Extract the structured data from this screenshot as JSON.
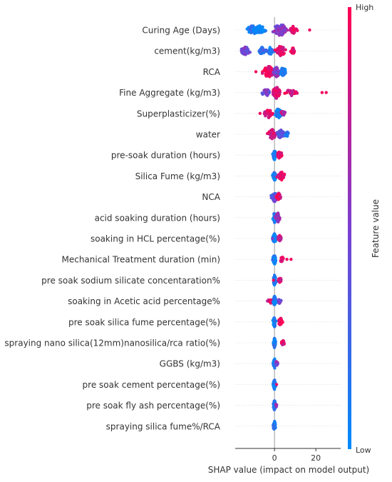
{
  "chart_data": {
    "type": "scatter",
    "subtype": "shap-beeswarm",
    "title": "",
    "xlabel": "SHAP value (impact on model output)",
    "xlim": [
      -19,
      32
    ],
    "xticks": [
      0,
      20
    ],
    "colorbar": {
      "label": "Feature value",
      "high_label": "High",
      "low_label": "Low",
      "high_color": "#ff0052",
      "low_color": "#008bfb"
    },
    "features": [
      {
        "name": "Curing Age (Days)",
        "clusters": [
          [
            -11,
            2.5,
            0.1,
            0.8
          ],
          [
            -7,
            2.5,
            0.05,
            0.7
          ],
          [
            3,
            3.5,
            0.55,
            1.0
          ],
          [
            9,
            1.5,
            0.9,
            0.5
          ]
        ],
        "outliers": [
          [
            17,
            0.95
          ]
        ]
      },
      {
        "name": "cement(kg/m3)",
        "clusters": [
          [
            -14,
            2.0,
            0.45,
            0.7
          ],
          [
            -6,
            1.5,
            0.2,
            0.5
          ],
          [
            -2,
            1.5,
            0.15,
            0.5
          ],
          [
            3,
            2.0,
            0.85,
            0.9
          ],
          [
            9,
            1.0,
            0.92,
            0.4
          ]
        ],
        "outliers": [
          [
            -16,
            0.5
          ]
        ]
      },
      {
        "name": "RCA",
        "clusters": [
          [
            -3,
            2.5,
            0.95,
            1.0
          ],
          [
            1,
            1.5,
            0.5,
            0.9
          ],
          [
            4,
            1.5,
            0.12,
            0.6
          ]
        ],
        "outliers": [
          [
            -9,
            0.95
          ]
        ]
      },
      {
        "name": "Fine Aggregate (kg/m3)",
        "clusters": [
          [
            -4,
            2.0,
            0.5,
            0.5
          ],
          [
            1,
            1.8,
            0.85,
            1.0
          ],
          [
            8,
            2.5,
            0.85,
            0.4
          ]
        ],
        "outliers": [
          [
            23,
            0.95
          ],
          [
            25,
            0.95
          ]
        ]
      },
      {
        "name": "Superplasticizer(%)",
        "clusters": [
          [
            -3,
            1.8,
            0.85,
            0.7
          ],
          [
            2,
            1.2,
            0.1,
            0.9
          ],
          [
            4,
            1.0,
            0.75,
            0.3
          ]
        ],
        "outliers": [
          [
            -7,
            0.95
          ]
        ]
      },
      {
        "name": "water",
        "clusters": [
          [
            -1,
            1.8,
            0.85,
            0.8
          ],
          [
            3,
            1.6,
            0.4,
            0.7
          ],
          [
            6,
            0.8,
            0.1,
            0.3
          ]
        ],
        "outliers": []
      },
      {
        "name": "pre-soak duration (hours)",
        "clusters": [
          [
            0,
            0.8,
            0.1,
            0.8
          ],
          [
            2.5,
            1.2,
            0.9,
            0.5
          ]
        ],
        "outliers": []
      },
      {
        "name": "Silica Fume (kg/m3)",
        "clusters": [
          [
            0,
            0.7,
            0.08,
            0.8
          ],
          [
            3.5,
            1.6,
            0.92,
            0.6
          ]
        ],
        "outliers": []
      },
      {
        "name": "NCA",
        "clusters": [
          [
            0,
            1.5,
            0.35,
            0.8
          ],
          [
            2,
            0.8,
            0.9,
            0.5
          ]
        ],
        "outliers": []
      },
      {
        "name": "acid soaking duration (hours)",
        "clusters": [
          [
            0,
            0.8,
            0.1,
            0.8
          ],
          [
            1.5,
            1.0,
            0.6,
            0.8
          ]
        ],
        "outliers": []
      },
      {
        "name": "soaking in HCL percentage(%)",
        "clusters": [
          [
            0,
            0.7,
            0.08,
            0.8
          ],
          [
            2.5,
            0.8,
            0.85,
            0.4
          ]
        ],
        "outliers": [
          [
            -1,
            0.5
          ]
        ]
      },
      {
        "name": "Mechanical Treatment duration (min)",
        "clusters": [
          [
            0,
            0.7,
            0.1,
            0.8
          ],
          [
            3.5,
            1.0,
            0.95,
            0.3
          ]
        ],
        "outliers": [
          [
            6,
            0.95
          ],
          [
            8,
            0.95
          ]
        ]
      },
      {
        "name": "pre soak sodium silicate concentaration%",
        "clusters": [
          [
            0,
            0.6,
            0.08,
            0.8
          ],
          [
            2.5,
            0.6,
            0.9,
            0.4
          ]
        ],
        "outliers": [
          [
            -0.5,
            0.9
          ]
        ]
      },
      {
        "name": "soaking in Acetic acid percentage%",
        "clusters": [
          [
            -2,
            1.0,
            0.9,
            0.3
          ],
          [
            0,
            0.6,
            0.1,
            0.8
          ],
          [
            2.5,
            0.7,
            0.5,
            0.3
          ]
        ],
        "outliers": []
      },
      {
        "name": "pre soak silica fume percentage(%)",
        "clusters": [
          [
            0,
            0.6,
            0.08,
            0.8
          ],
          [
            3,
            1.0,
            0.92,
            0.5
          ]
        ],
        "outliers": []
      },
      {
        "name": "spraying nano silica(12mm)nanosilica/rca ratio(%)",
        "clusters": [
          [
            0,
            0.5,
            0.08,
            0.8
          ],
          [
            4,
            0.8,
            0.85,
            0.3
          ]
        ],
        "outliers": []
      },
      {
        "name": "GGBS (kg/m3)",
        "clusters": [
          [
            0,
            0.5,
            0.08,
            0.8
          ],
          [
            1,
            0.5,
            0.5,
            0.3
          ]
        ],
        "outliers": []
      },
      {
        "name": "pre soak cement percentage(%)",
        "clusters": [
          [
            0,
            0.5,
            0.08,
            0.8
          ]
        ],
        "outliers": [
          [
            1,
            0.9
          ]
        ]
      },
      {
        "name": "pre soak fly ash percentage(%)",
        "clusters": [
          [
            0,
            0.5,
            0.08,
            0.8
          ],
          [
            0.8,
            0.4,
            0.6,
            0.2
          ]
        ],
        "outliers": []
      },
      {
        "name": "spraying silica fume%/RCA",
        "clusters": [
          [
            0,
            0.5,
            0.08,
            0.8
          ]
        ],
        "outliers": []
      }
    ]
  }
}
